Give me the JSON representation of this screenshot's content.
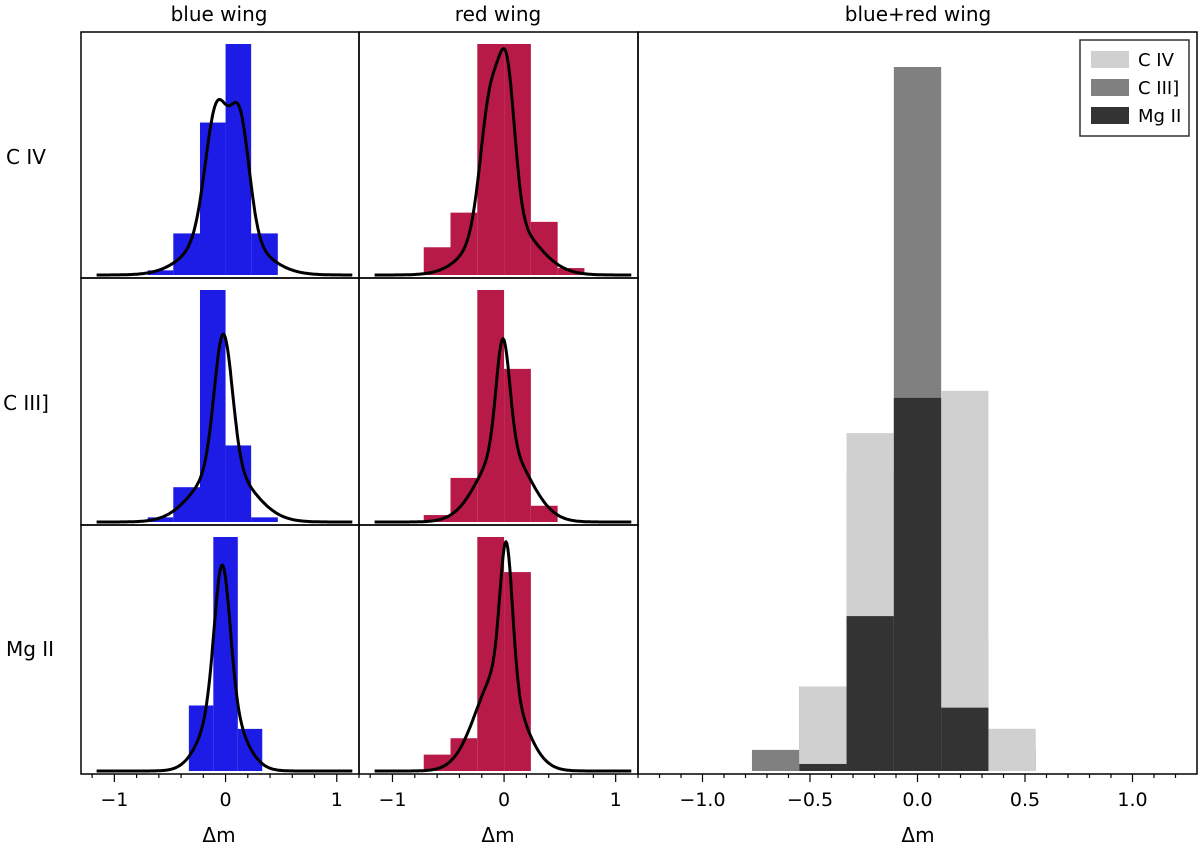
{
  "chart_data": {
    "type": "bar",
    "panel_layout": "3x2 grid of small histograms plus one combined histogram",
    "column_titles": [
      "blue wing",
      "red wing",
      "blue+red wing"
    ],
    "row_labels": [
      "C IV",
      "C III]",
      "Mg II"
    ],
    "xlabel": "Δm",
    "colors": {
      "blue_wing": "#1c1ce6",
      "red_wing": "#b81a48",
      "kde_line": "#000000",
      "C IV": "#d0d0d0",
      "C III]": "#808080",
      "Mg II": "#333333"
    },
    "small_panels": {
      "xlim": [
        -1.3,
        1.2
      ],
      "xticks": [
        -1,
        0,
        1
      ],
      "xtick_labels": [
        "−1",
        "0",
        "1"
      ],
      "blue_wing": [
        {
          "line": "C IV",
          "bins": [
            {
              "x0": -0.7,
              "x1": -0.47,
              "h": 0.02
            },
            {
              "x0": -0.47,
              "x1": -0.23,
              "h": 0.18
            },
            {
              "x0": -0.23,
              "x1": 0.0,
              "h": 0.66
            },
            {
              "x0": 0.0,
              "x1": 0.23,
              "h": 1.0
            },
            {
              "x0": 0.23,
              "x1": 0.47,
              "h": 0.18
            }
          ],
          "kde_peaks": [
            {
              "mu": -0.08,
              "sigma": 0.1,
              "amp": 0.5
            },
            {
              "mu": 0.13,
              "sigma": 0.085,
              "amp": 0.45
            },
            {
              "mu": 0.0,
              "sigma": 0.28,
              "amp": 0.2
            }
          ],
          "kde_max": 0.76
        },
        {
          "line": "C III]",
          "bins": [
            {
              "x0": -0.7,
              "x1": -0.47,
              "h": 0.02
            },
            {
              "x0": -0.47,
              "x1": -0.23,
              "h": 0.15
            },
            {
              "x0": -0.23,
              "x1": 0.0,
              "h": 1.0
            },
            {
              "x0": 0.0,
              "x1": 0.23,
              "h": 0.33
            },
            {
              "x0": 0.23,
              "x1": 0.47,
              "h": 0.02
            }
          ],
          "kde_peaks": [
            {
              "mu": -0.02,
              "sigma": 0.08,
              "amp": 0.6
            },
            {
              "mu": -0.02,
              "sigma": 0.25,
              "amp": 0.25
            }
          ],
          "kde_max": 0.81
        },
        {
          "line": "Mg II",
          "bins": [
            {
              "x0": -0.33,
              "x1": -0.11,
              "h": 0.28
            },
            {
              "x0": -0.11,
              "x1": 0.11,
              "h": 1.0
            },
            {
              "x0": 0.11,
              "x1": 0.33,
              "h": 0.18
            }
          ],
          "kde_peaks": [
            {
              "mu": -0.03,
              "sigma": 0.07,
              "amp": 0.6
            },
            {
              "mu": -0.03,
              "sigma": 0.17,
              "amp": 0.3
            }
          ],
          "kde_max": 0.88
        }
      ],
      "red_wing": [
        {
          "line": "C IV",
          "bins": [
            {
              "x0": -0.72,
              "x1": -0.48,
              "h": 0.12
            },
            {
              "x0": -0.48,
              "x1": -0.24,
              "h": 0.27
            },
            {
              "x0": -0.24,
              "x1": 0.0,
              "h": 1.0
            },
            {
              "x0": 0.0,
              "x1": 0.24,
              "h": 1.0
            },
            {
              "x0": 0.24,
              "x1": 0.48,
              "h": 0.23
            },
            {
              "x0": 0.48,
              "x1": 0.72,
              "h": 0.03
            }
          ],
          "kde_peaks": [
            {
              "mu": -0.12,
              "sigma": 0.09,
              "amp": 0.5
            },
            {
              "mu": 0.03,
              "sigma": 0.07,
              "amp": 0.5
            },
            {
              "mu": 0.0,
              "sigma": 0.26,
              "amp": 0.23
            }
          ],
          "kde_max": 0.98
        },
        {
          "line": "C III]",
          "bins": [
            {
              "x0": -0.72,
              "x1": -0.48,
              "h": 0.03
            },
            {
              "x0": -0.48,
              "x1": -0.24,
              "h": 0.19
            },
            {
              "x0": -0.24,
              "x1": 0.0,
              "h": 1.0
            },
            {
              "x0": 0.0,
              "x1": 0.24,
              "h": 0.66
            },
            {
              "x0": 0.24,
              "x1": 0.48,
              "h": 0.07
            }
          ],
          "kde_peaks": [
            {
              "mu": -0.01,
              "sigma": 0.06,
              "amp": 0.5
            },
            {
              "mu": 0.0,
              "sigma": 0.22,
              "amp": 0.35
            }
          ],
          "kde_max": 0.79
        },
        {
          "line": "Mg II",
          "bins": [
            {
              "x0": -0.72,
              "x1": -0.48,
              "h": 0.07
            },
            {
              "x0": -0.48,
              "x1": -0.24,
              "h": 0.14
            },
            {
              "x0": -0.24,
              "x1": 0.0,
              "h": 1.0
            },
            {
              "x0": 0.0,
              "x1": 0.24,
              "h": 0.85
            },
            {
              "x0": 0.24,
              "x1": 0.48,
              "h": 0.0
            }
          ],
          "kde_peaks": [
            {
              "mu": 0.02,
              "sigma": 0.055,
              "amp": 0.55
            },
            {
              "mu": -0.05,
              "sigma": 0.2,
              "amp": 0.4
            }
          ],
          "kde_max": 0.98
        }
      ]
    },
    "combined_panel": {
      "title": "blue+red wing",
      "xlim": [
        -1.3,
        1.3
      ],
      "xticks": [
        -1.0,
        -0.5,
        0.0,
        0.5,
        1.0
      ],
      "xtick_labels": [
        "−1.0",
        "−0.5",
        "0.0",
        "0.5",
        "1.0"
      ],
      "ymax": 1.0,
      "legend": [
        "C IV",
        "C III]",
        "Mg II"
      ],
      "legend_position": "top-right",
      "series": [
        {
          "name": "C III]",
          "bins": [
            {
              "x0": -0.77,
              "x1": -0.55,
              "h": 0.03
            },
            {
              "x0": -0.55,
              "x1": -0.33,
              "h": 0.12
            },
            {
              "x0": -0.33,
              "x1": -0.11,
              "h": 0.42
            },
            {
              "x0": -0.11,
              "x1": 0.11,
              "h": 1.0
            },
            {
              "x0": 0.11,
              "x1": 0.33,
              "h": 0.19
            },
            {
              "x0": 0.33,
              "x1": 0.55,
              "h": 0.03
            }
          ]
        },
        {
          "name": "C IV",
          "bins": [
            {
              "x0": -0.55,
              "x1": -0.33,
              "h": 0.12
            },
            {
              "x0": -0.33,
              "x1": -0.11,
              "h": 0.48
            },
            {
              "x0": 0.11,
              "x1": 0.33,
              "h": 0.54
            },
            {
              "x0": 0.33,
              "x1": 0.55,
              "h": 0.06
            }
          ]
        },
        {
          "name": "Mg II",
          "bins": [
            {
              "x0": -0.55,
              "x1": -0.33,
              "h": 0.01
            },
            {
              "x0": -0.33,
              "x1": -0.11,
              "h": 0.22
            },
            {
              "x0": -0.11,
              "x1": 0.11,
              "h": 0.53
            },
            {
              "x0": 0.11,
              "x1": 0.33,
              "h": 0.09
            }
          ]
        }
      ]
    }
  }
}
